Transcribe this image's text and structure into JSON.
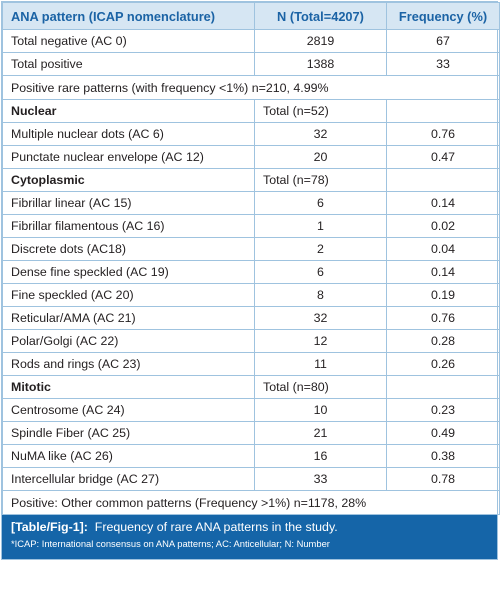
{
  "header": {
    "col1": "ANA pattern (ICAP nomenclature)",
    "col2": "N (Total=4207)",
    "col3": "Frequency (%)"
  },
  "summary_rows": [
    {
      "label": "Total negative (AC 0)",
      "n": "2819",
      "freq": "67"
    },
    {
      "label": "Total positive",
      "n": "1388",
      "freq": "33"
    }
  ],
  "rare_note": "Positive rare patterns (with frequency <1%) n=210, 4.99%",
  "groups": [
    {
      "name": "Nuclear",
      "total": "Total (n=52)",
      "rows": [
        {
          "label": "Multiple nuclear dots (AC 6)",
          "n": "32",
          "freq": "0.76"
        },
        {
          "label": "Punctate nuclear envelope (AC 12)",
          "n": "20",
          "freq": "0.47"
        }
      ]
    },
    {
      "name": "Cytoplasmic",
      "total": "Total (n=78)",
      "rows": [
        {
          "label": "Fibrillar linear (AC 15)",
          "n": "6",
          "freq": "0.14"
        },
        {
          "label": "Fibrillar filamentous (AC 16)",
          "n": "1",
          "freq": "0.02"
        },
        {
          "label": "Discrete dots (AC18)",
          "n": "2",
          "freq": "0.04"
        },
        {
          "label": "Dense fine speckled (AC 19)",
          "n": "6",
          "freq": "0.14"
        },
        {
          "label": "Fine speckled (AC 20)",
          "n": "8",
          "freq": "0.19"
        },
        {
          "label": "Reticular/AMA (AC 21)",
          "n": "32",
          "freq": "0.76"
        },
        {
          "label": "Polar/Golgi (AC 22)",
          "n": "12",
          "freq": "0.28"
        },
        {
          "label": "Rods and rings (AC 23)",
          "n": "11",
          "freq": "0.26"
        }
      ]
    },
    {
      "name": "Mitotic",
      "total": "Total (n=80)",
      "rows": [
        {
          "label": "Centrosome (AC 24)",
          "n": "10",
          "freq": "0.23"
        },
        {
          "label": "Spindle Fiber (AC 25)",
          "n": "21",
          "freq": "0.49"
        },
        {
          "label": "NuMA like (AC 26)",
          "n": "16",
          "freq": "0.38"
        },
        {
          "label": "Intercellular bridge (AC 27)",
          "n": "33",
          "freq": "0.78"
        }
      ]
    }
  ],
  "common_note": "Positive: Other common patterns (Frequency >1%) n=1178, 28%",
  "caption": {
    "tag": "[Table/Fig-1]:",
    "text": "Frequency of rare ANA patterns in the study.",
    "footnote": "*ICAP: International consensus on ANA patterns; AC: Anticellular; N: Number"
  },
  "colors": {
    "header_bg": "#d6e6f3",
    "header_text": "#1b63a5",
    "border": "#9fc3df",
    "caption_bg": "#1565a8"
  }
}
